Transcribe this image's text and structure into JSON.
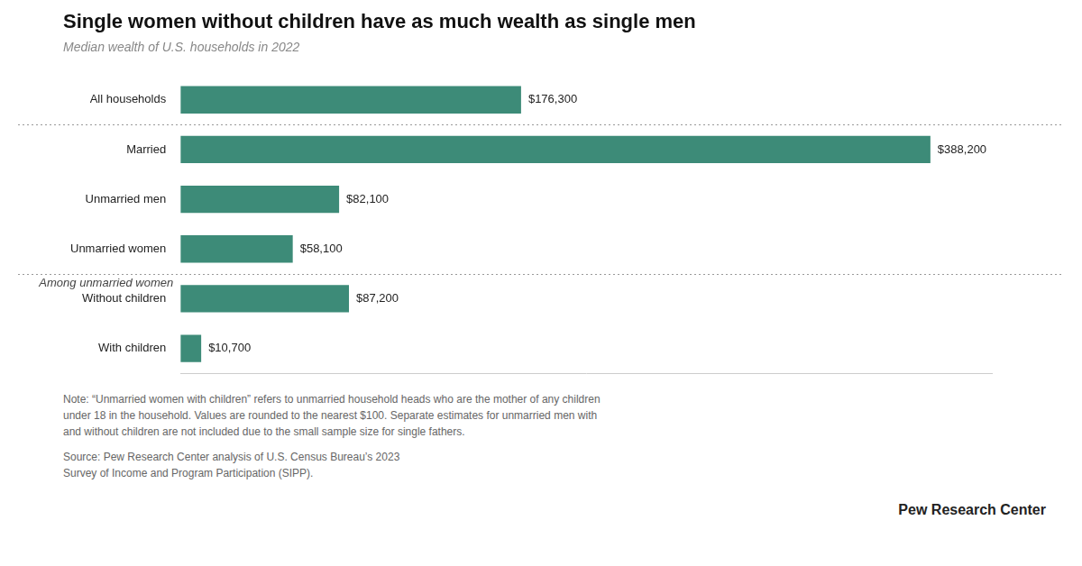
{
  "chart_data": {
    "type": "bar",
    "orientation": "horizontal",
    "title": "Single women without children have as much wealth as single men",
    "subtitle": "Median wealth of U.S. households in 2022",
    "categories": [
      "All households",
      "Married",
      "Unmarried men",
      "Unmarried women",
      "Without children",
      "With children"
    ],
    "values": [
      176300,
      388200,
      82100,
      58100,
      87200,
      10700
    ],
    "value_labels": [
      "$176,300",
      "$388,200",
      "$82,100",
      "$58,100",
      "$87,200",
      "$10,700"
    ],
    "color": "#3d8b78",
    "xlim": [
      0,
      420000
    ],
    "grid": false,
    "data_labels": true,
    "tick_labels": "y",
    "annotations": [
      {
        "text": "Among unmarried women",
        "category": "Without children"
      }
    ],
    "note": "Note: “Unmarried women with children” refers to unmarried household heads who are the mother of any children\nunder 18 in the household. Values are rounded to the nearest $100. Separate estimates for unmarried men with\nand without children are not included due to the small sample size for single fathers.",
    "source": "Source: Pew Research Center analysis of U.S. Census Bureau’s 2023\nSurvey of Income and Program Participation (SIPP).",
    "credit": "Pew Research Center"
  }
}
